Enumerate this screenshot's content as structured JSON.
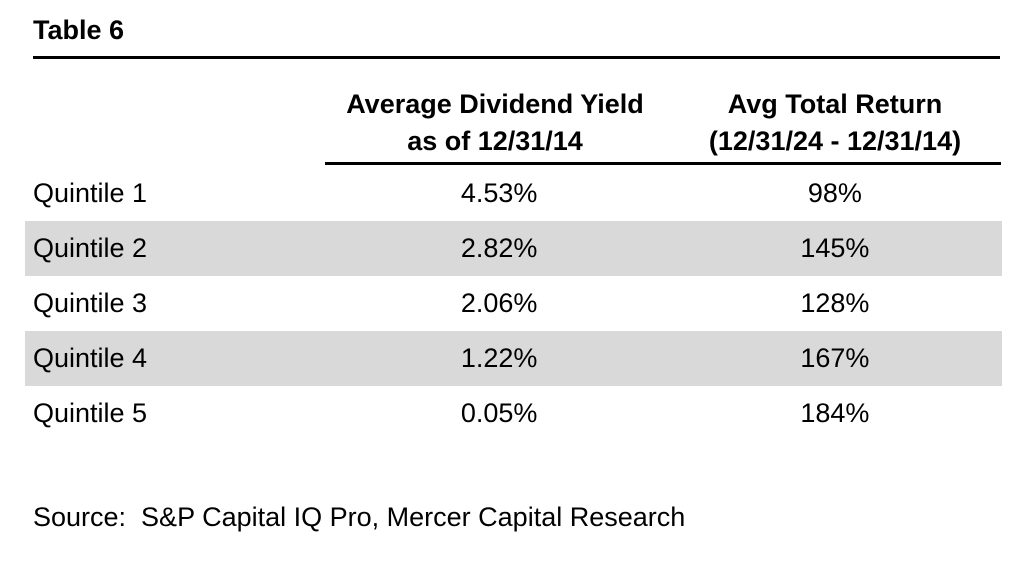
{
  "title": "Table 6",
  "table": {
    "columns": [
      {
        "id": "quintile",
        "label": ""
      },
      {
        "id": "avg_dividend_yield",
        "label_line1": "Average Dividend Yield",
        "label_line2": "as of 12/31/14"
      },
      {
        "id": "avg_total_return",
        "label_line1": "Avg Total Return",
        "label_line2": "(12/31/24 - 12/31/14)"
      }
    ],
    "rows": [
      {
        "label": "Quintile 1",
        "dividend_yield": "4.53%",
        "total_return": "98%"
      },
      {
        "label": "Quintile 2",
        "dividend_yield": "2.82%",
        "total_return": "145%"
      },
      {
        "label": "Quintile 3",
        "dividend_yield": "2.06%",
        "total_return": "128%"
      },
      {
        "label": "Quintile 4",
        "dividend_yield": "1.22%",
        "total_return": "167%"
      },
      {
        "label": "Quintile 5",
        "dividend_yield": "0.05%",
        "total_return": "184%"
      }
    ]
  },
  "source": "Source:  S&P Capital IQ Pro, Mercer Capital Research",
  "colors": {
    "background": "#ffffff",
    "text": "#000000",
    "rule": "#000000",
    "row_stripe": "#d9d9d9"
  }
}
